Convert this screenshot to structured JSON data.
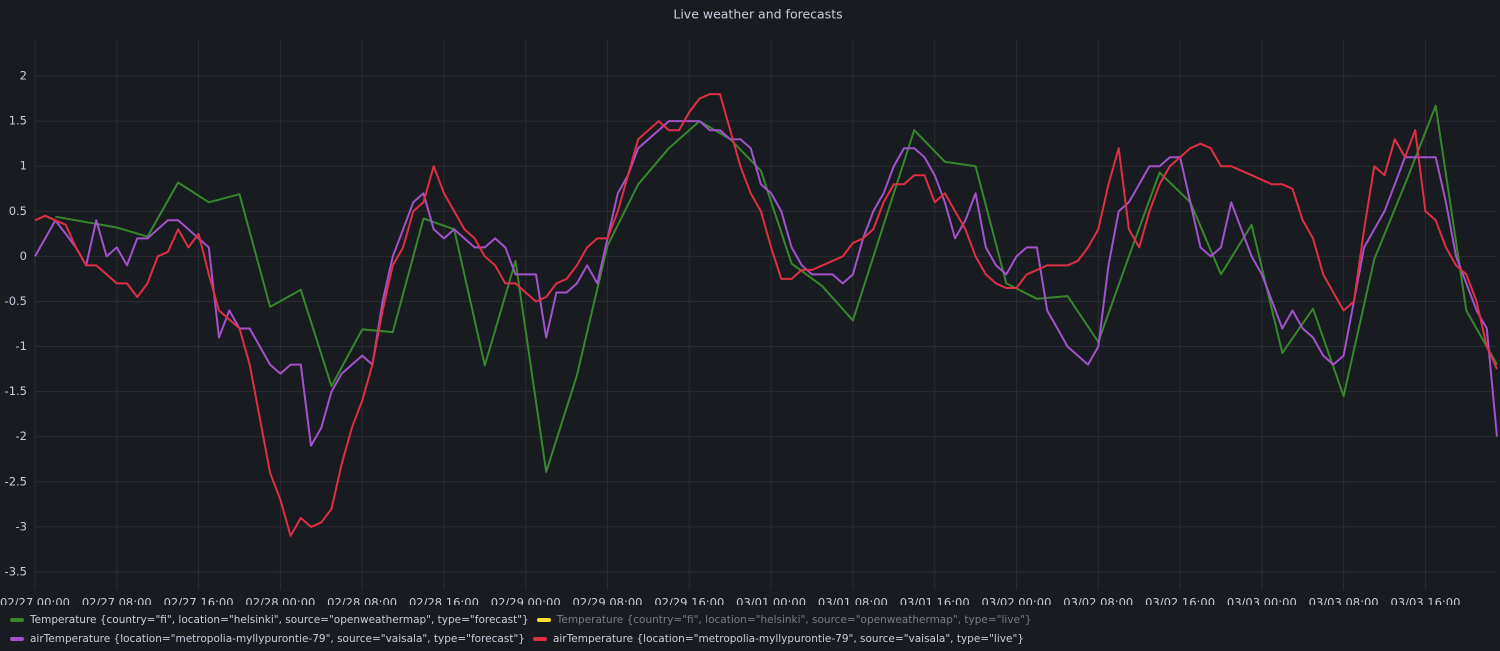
{
  "chart_data": {
    "type": "line",
    "title": "Live weather and forecasts",
    "xlim": [
      "02/27 00:00",
      "03/03 23:00"
    ],
    "xticks": [
      "02/27 00:00",
      "02/27 08:00",
      "02/27 16:00",
      "02/28 00:00",
      "02/28 08:00",
      "02/28 16:00",
      "02/29 00:00",
      "02/29 08:00",
      "02/29 16:00",
      "03/01 00:00",
      "03/01 08:00",
      "03/01 16:00",
      "03/02 00:00",
      "03/02 08:00",
      "03/02 16:00",
      "03/03 00:00",
      "03/03 08:00",
      "03/03 16:00"
    ],
    "ylim": [
      -3.7,
      2.4
    ],
    "yticks": [
      2,
      1.5,
      1,
      0.5,
      0,
      -0.5,
      -1,
      -1.5,
      -2,
      -2.5,
      -3,
      -3.5
    ],
    "grid": true,
    "legend": "bottom",
    "x": [
      "02/27 00:00",
      "02/27 01:00",
      "02/27 02:00",
      "02/27 03:00",
      "02/27 04:00",
      "02/27 05:00",
      "02/27 06:00",
      "02/27 07:00",
      "02/27 08:00",
      "02/27 09:00",
      "02/27 10:00",
      "02/27 11:00",
      "02/27 12:00",
      "02/27 13:00",
      "02/27 14:00",
      "02/27 15:00",
      "02/27 16:00",
      "02/27 17:00",
      "02/27 18:00",
      "02/27 19:00",
      "02/27 20:00",
      "02/27 21:00",
      "02/27 22:00",
      "02/27 23:00",
      "02/28 00:00",
      "02/28 01:00",
      "02/28 02:00",
      "02/28 03:00",
      "02/28 04:00",
      "02/28 05:00",
      "02/28 06:00",
      "02/28 07:00",
      "02/28 08:00",
      "02/28 09:00",
      "02/28 10:00",
      "02/28 11:00",
      "02/28 12:00",
      "02/28 13:00",
      "02/28 14:00",
      "02/28 15:00",
      "02/28 16:00",
      "02/28 17:00",
      "02/28 18:00",
      "02/28 19:00",
      "02/28 20:00",
      "02/28 21:00",
      "02/28 22:00",
      "02/28 23:00",
      "02/29 00:00",
      "02/29 01:00",
      "02/29 02:00",
      "02/29 03:00",
      "02/29 04:00",
      "02/29 05:00",
      "02/29 06:00",
      "02/29 07:00",
      "02/29 08:00",
      "02/29 09:00",
      "02/29 10:00",
      "02/29 11:00",
      "02/29 12:00",
      "02/29 13:00",
      "02/29 14:00",
      "02/29 15:00",
      "02/29 16:00",
      "02/29 17:00",
      "02/29 18:00",
      "02/29 19:00",
      "02/29 20:00",
      "02/29 21:00",
      "02/29 22:00",
      "02/29 23:00",
      "03/01 00:00",
      "03/01 01:00",
      "03/01 02:00",
      "03/01 03:00",
      "03/01 04:00",
      "03/01 05:00",
      "03/01 06:00",
      "03/01 07:00",
      "03/01 08:00",
      "03/01 09:00",
      "03/01 10:00",
      "03/01 11:00",
      "03/01 12:00",
      "03/01 13:00",
      "03/01 14:00",
      "03/01 15:00",
      "03/01 16:00",
      "03/01 17:00",
      "03/01 18:00",
      "03/01 19:00",
      "03/01 20:00",
      "03/01 21:00",
      "03/01 22:00",
      "03/01 23:00",
      "03/02 00:00",
      "03/02 01:00",
      "03/02 02:00",
      "03/02 03:00",
      "03/02 04:00",
      "03/02 05:00",
      "03/02 06:00",
      "03/02 07:00",
      "03/02 08:00",
      "03/02 09:00",
      "03/02 10:00",
      "03/02 11:00",
      "03/02 12:00",
      "03/02 13:00",
      "03/02 14:00",
      "03/02 15:00",
      "03/02 16:00",
      "03/02 17:00",
      "03/02 18:00",
      "03/02 19:00",
      "03/02 20:00",
      "03/02 21:00",
      "03/02 22:00",
      "03/02 23:00",
      "03/03 00:00",
      "03/03 01:00",
      "03/03 02:00",
      "03/03 03:00",
      "03/03 04:00",
      "03/03 05:00",
      "03/03 06:00",
      "03/03 07:00",
      "03/03 08:00",
      "03/03 09:00",
      "03/03 10:00",
      "03/03 11:00",
      "03/03 12:00",
      "03/03 13:00",
      "03/03 14:00",
      "03/03 15:00",
      "03/03 16:00",
      "03/03 17:00",
      "03/03 18:00",
      "03/03 19:00",
      "03/03 20:00",
      "03/03 21:00",
      "03/03 22:00",
      "03/03 23:00"
    ],
    "series": [
      {
        "name": "Temperature {country=\"fi\", location=\"helsinki\", source=\"openweathermap\", type=\"forecast\"}",
        "color": "#37872d",
        "x": [
          "02/27 02:00",
          "02/27 08:00",
          "02/27 11:00",
          "02/27 14:00",
          "02/27 17:00",
          "02/27 20:00",
          "02/27 23:00",
          "02/28 02:00",
          "02/28 05:00",
          "02/28 08:00",
          "02/28 11:00",
          "02/28 14:00",
          "02/28 17:00",
          "02/28 20:00",
          "02/28 23:00",
          "02/29 02:00",
          "02/29 05:00",
          "02/29 08:00",
          "02/29 11:00",
          "02/29 14:00",
          "02/29 17:00",
          "02/29 20:00",
          "02/29 23:00",
          "03/01 02:00",
          "03/01 05:00",
          "03/01 08:00",
          "03/01 11:00",
          "03/01 14:00",
          "03/01 17:00",
          "03/01 20:00",
          "03/01 23:00",
          "03/02 02:00",
          "03/02 05:00",
          "03/02 08:00",
          "03/02 11:00",
          "03/02 14:00",
          "03/02 17:00",
          "03/02 20:00",
          "03/02 23:00",
          "03/03 02:00",
          "03/03 05:00",
          "03/03 08:00",
          "03/03 11:00",
          "03/03 14:00",
          "03/03 17:00",
          "03/03 20:00",
          "03/03 23:00"
        ],
        "values": [
          0.44,
          0.32,
          0.22,
          0.82,
          0.6,
          0.69,
          -0.56,
          -0.37,
          -1.44,
          -0.81,
          -0.84,
          0.42,
          0.3,
          -1.21,
          -0.05,
          -2.39,
          -1.32,
          0.12,
          0.8,
          1.2,
          1.5,
          1.3,
          0.95,
          -0.08,
          -0.33,
          -0.71,
          0.35,
          1.4,
          1.05,
          1.0,
          -0.3,
          -0.47,
          -0.44,
          -0.95,
          0.0,
          0.93,
          0.6,
          -0.2,
          0.35,
          -1.07,
          -0.58,
          -1.55,
          -0.03,
          0.8,
          1.67,
          -0.6,
          -1.2
        ]
      },
      {
        "name": "Temperature {country=\"fi\", location=\"helsinki\", source=\"openweathermap\", type=\"live\"}",
        "color": "#fade2a",
        "hidden": true,
        "x": [],
        "values": []
      },
      {
        "name": "airTemperature {location=\"metropolia-myllypurontie-79\", source=\"vaisala\", type=\"forecast\"}",
        "color": "#a352cc",
        "values": [
          0,
          0.2,
          0.4,
          0.25,
          0.1,
          -0.1,
          0.4,
          0,
          0.1,
          -0.1,
          0.2,
          0.2,
          0.3,
          0.4,
          0.4,
          0.3,
          0.2,
          0.1,
          -0.9,
          -0.6,
          -0.8,
          -0.8,
          -1.0,
          -1.2,
          -1.3,
          -1.2,
          -1.2,
          -2.1,
          -1.9,
          -1.5,
          -1.3,
          -1.2,
          -1.1,
          -1.2,
          -0.5,
          0.0,
          0.3,
          0.6,
          0.7,
          0.3,
          0.2,
          0.3,
          0.2,
          0.1,
          0.1,
          0.2,
          0.1,
          -0.2,
          -0.2,
          -0.2,
          -0.9,
          -0.4,
          -0.4,
          -0.3,
          -0.1,
          -0.3,
          0.2,
          0.7,
          0.9,
          1.2,
          1.3,
          1.4,
          1.5,
          1.5,
          1.5,
          1.5,
          1.4,
          1.4,
          1.3,
          1.3,
          1.2,
          0.8,
          0.7,
          0.5,
          0.1,
          -0.1,
          -0.2,
          -0.2,
          -0.2,
          -0.3,
          -0.2,
          0.2,
          0.5,
          0.7,
          1.0,
          1.2,
          1.2,
          1.1,
          0.9,
          0.6,
          0.2,
          0.4,
          0.7,
          0.1,
          -0.1,
          -0.2,
          0.0,
          0.1,
          0.1,
          -0.6,
          -0.8,
          -1.0,
          -1.1,
          -1.2,
          -1.0,
          -0.1,
          0.5,
          0.6,
          0.8,
          1.0,
          1.0,
          1.1,
          1.1,
          0.6,
          0.1,
          0.0,
          0.1,
          0.6,
          0.3,
          0.0,
          -0.2,
          -0.5,
          -0.8,
          -0.6,
          -0.8,
          -0.9,
          -1.1,
          -1.2,
          -1.1,
          -0.5,
          0.1,
          0.3,
          0.5,
          0.8,
          1.1,
          1.1,
          1.1,
          1.1,
          0.6,
          0.0,
          -0.3,
          -0.6,
          -0.8,
          -2.0
        ]
      },
      {
        "name": "airTemperature {location=\"metropolia-myllypurontie-79\", source=\"vaisala\", type=\"live\"}",
        "color": "#e02f44",
        "values": [
          0.4,
          0.45,
          0.4,
          0.35,
          0.1,
          -0.1,
          -0.1,
          -0.2,
          -0.3,
          -0.3,
          -0.45,
          -0.3,
          0.0,
          0.05,
          0.3,
          0.1,
          0.25,
          -0.2,
          -0.6,
          -0.7,
          -0.8,
          -1.2,
          -1.8,
          -2.4,
          -2.7,
          -3.1,
          -2.9,
          -3.0,
          -2.95,
          -2.8,
          -2.3,
          -1.9,
          -1.6,
          -1.2,
          -0.6,
          -0.1,
          0.1,
          0.5,
          0.6,
          1.0,
          0.7,
          0.5,
          0.3,
          0.2,
          0.0,
          -0.1,
          -0.3,
          -0.3,
          -0.4,
          -0.5,
          -0.45,
          -0.3,
          -0.25,
          -0.1,
          0.1,
          0.2,
          0.2,
          0.5,
          0.9,
          1.3,
          1.4,
          1.5,
          1.4,
          1.4,
          1.6,
          1.75,
          1.8,
          1.8,
          1.4,
          1.0,
          0.7,
          0.5,
          0.1,
          -0.25,
          -0.25,
          -0.15,
          -0.15,
          -0.1,
          -0.05,
          0.0,
          0.15,
          0.2,
          0.3,
          0.6,
          0.8,
          0.8,
          0.9,
          0.9,
          0.6,
          0.7,
          0.5,
          0.3,
          0.0,
          -0.2,
          -0.3,
          -0.35,
          -0.35,
          -0.2,
          -0.15,
          -0.1,
          -0.1,
          -0.1,
          -0.05,
          0.1,
          0.3,
          0.8,
          1.2,
          0.3,
          0.1,
          0.5,
          0.8,
          1.0,
          1.1,
          1.2,
          1.25,
          1.2,
          1.0,
          1.0,
          0.95,
          0.9,
          0.85,
          0.8,
          0.8,
          0.75,
          0.4,
          0.2,
          -0.2,
          -0.4,
          -0.6,
          -0.5,
          0.3,
          1.0,
          0.9,
          1.3,
          1.1,
          1.4,
          0.5,
          0.4,
          0.1,
          -0.1,
          -0.2,
          -0.5,
          -1.0,
          -1.25
        ]
      }
    ]
  }
}
